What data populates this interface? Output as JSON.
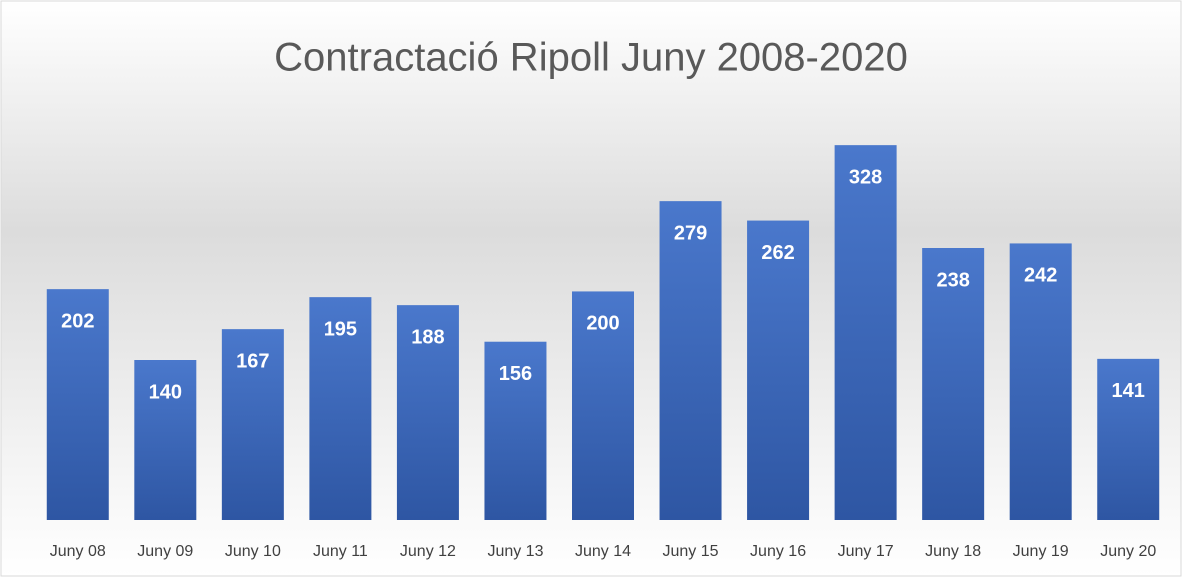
{
  "chart_data": {
    "type": "bar",
    "title": "Contractació Ripoll Juny 2008-2020",
    "categories": [
      "Juny 08",
      "Juny 09",
      "Juny 10",
      "Juny 11",
      "Juny 12",
      "Juny 13",
      "Juny 14",
      "Juny 15",
      "Juny 16",
      "Juny 17",
      "Juny 18",
      "Juny 19",
      "Juny 20"
    ],
    "values": [
      202,
      140,
      167,
      195,
      188,
      156,
      200,
      279,
      262,
      328,
      238,
      242,
      141
    ],
    "color": "#4472c4",
    "ylim": [
      0,
      350
    ]
  }
}
